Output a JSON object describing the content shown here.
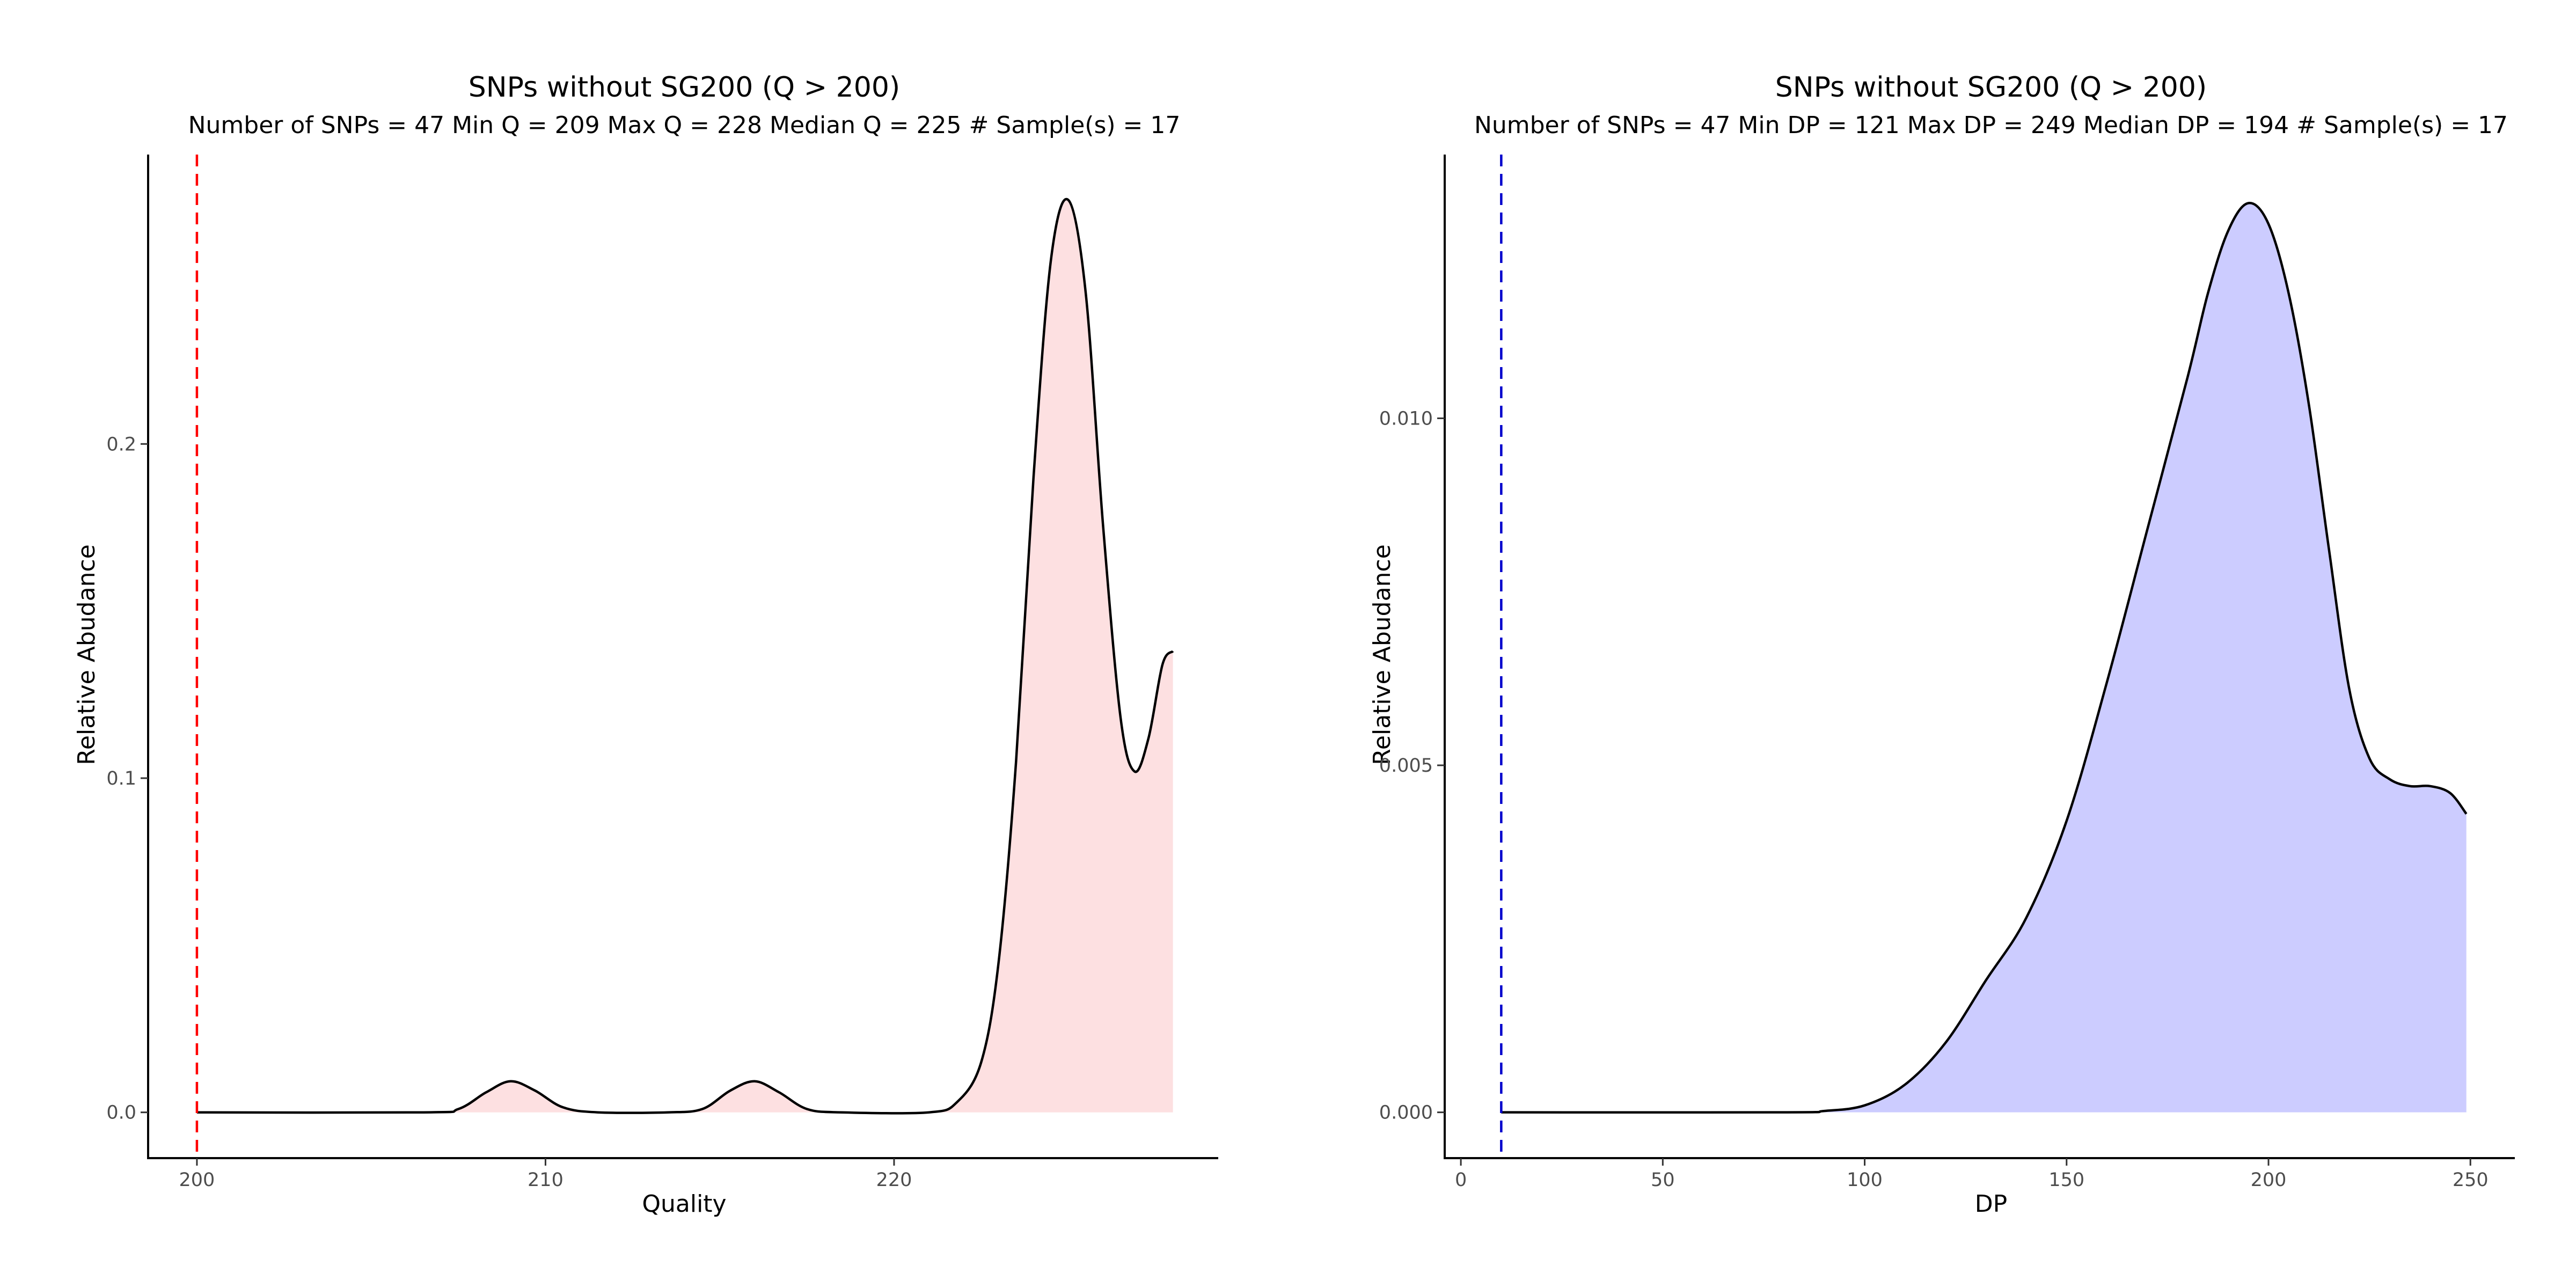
{
  "chart_data": [
    {
      "type": "area",
      "title": "SNPs without SG200 (Q > 200)",
      "subtitle": "Number of SNPs = 47   Min Q = 209   Max Q = 228   Median Q = 225   # Sample(s) = 17",
      "xlabel": "Quality",
      "ylabel": "Relative Abudance",
      "xlim": [
        198.6,
        229.3
      ],
      "ylim": [
        -0.0137,
        0.2866
      ],
      "x_ticks": [
        {
          "value": 200,
          "label": "200"
        },
        {
          "value": 210,
          "label": "210"
        },
        {
          "value": 220,
          "label": "220"
        }
      ],
      "y_ticks": [
        {
          "value": 0.0,
          "label": "0.0"
        },
        {
          "value": 0.1,
          "label": "0.1"
        },
        {
          "value": 0.2,
          "label": "0.2"
        }
      ],
      "threshold_line": {
        "x": 200,
        "color": "#ff0000",
        "style": "dashed"
      },
      "fill_color": "#fde0e1",
      "line_color": "#000000",
      "grid": false,
      "series": [
        {
          "x": [
            200,
            206.5,
            207.5,
            208.3,
            209,
            209.7,
            210.5,
            211.5,
            213.5,
            214.5,
            215.3,
            216,
            216.7,
            217.5,
            218.5,
            221,
            221.8,
            222.5,
            223,
            223.5,
            224,
            224.5,
            225,
            225.5,
            226,
            226.5,
            226.9,
            227.3,
            227.7,
            228
          ],
          "y": [
            0,
            0,
            0.001,
            0.006,
            0.0093,
            0.0065,
            0.0015,
            0,
            0,
            0.001,
            0.0065,
            0.0093,
            0.006,
            0.001,
            0,
            0,
            0.003,
            0.015,
            0.045,
            0.105,
            0.19,
            0.255,
            0.273,
            0.245,
            0.175,
            0.118,
            0.102,
            0.112,
            0.134,
            0.138
          ]
        }
      ]
    },
    {
      "type": "area",
      "title": "SNPs without SG200 (Q > 200)",
      "subtitle": "Number of SNPs = 47   Min DP = 121   Max DP = 249   Median DP = 194   # Sample(s) = 17",
      "xlabel": "DP",
      "ylabel": "Relative Abudance",
      "xlim": [
        -4,
        261
      ],
      "ylim": [
        -0.00066,
        0.0138
      ],
      "x_ticks": [
        {
          "value": 0,
          "label": "0"
        },
        {
          "value": 50,
          "label": "50"
        },
        {
          "value": 100,
          "label": "100"
        },
        {
          "value": 150,
          "label": "150"
        },
        {
          "value": 200,
          "label": "200"
        },
        {
          "value": 250,
          "label": "250"
        }
      ],
      "y_ticks": [
        {
          "value": 0.0,
          "label": "0.000"
        },
        {
          "value": 0.005,
          "label": "0.005"
        },
        {
          "value": 0.01,
          "label": "0.010"
        }
      ],
      "threshold_line": {
        "x": 10,
        "color": "#0000cc",
        "style": "dashed"
      },
      "fill_color": "#ccccff",
      "line_color": "#000000",
      "grid": false,
      "series": [
        {
          "x": [
            10,
            80,
            90,
            100,
            110,
            120,
            130,
            140,
            150,
            160,
            170,
            180,
            185,
            190,
            195,
            200,
            205,
            210,
            215,
            220,
            225,
            230,
            235,
            240,
            245,
            249
          ],
          "y": [
            0,
            0,
            2e-05,
            0.0001,
            0.0004,
            0.001,
            0.0019,
            0.0028,
            0.0042,
            0.0062,
            0.0084,
            0.0106,
            0.0118,
            0.0127,
            0.0131,
            0.0128,
            0.0118,
            0.0102,
            0.0081,
            0.0061,
            0.0051,
            0.0048,
            0.0047,
            0.0047,
            0.0046,
            0.0043
          ]
        }
      ]
    }
  ]
}
